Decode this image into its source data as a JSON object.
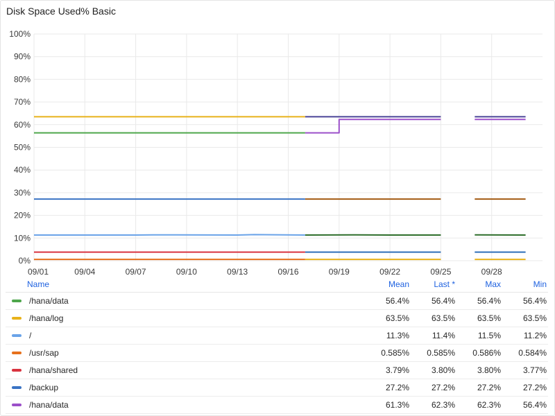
{
  "panel": {
    "title": "Disk Space Used% Basic"
  },
  "legend": {
    "headers": {
      "name": "Name",
      "mean": "Mean",
      "last": "Last *",
      "max": "Max",
      "min": "Min"
    },
    "rows": [
      {
        "name": "/hana/data",
        "color": "#4ea64b",
        "mean": "56.4%",
        "last": "56.4%",
        "max": "56.4%",
        "min": "56.4%"
      },
      {
        "name": "/hana/log",
        "color": "#e8b21a",
        "mean": "63.5%",
        "last": "63.5%",
        "max": "63.5%",
        "min": "63.5%"
      },
      {
        "name": "/",
        "color": "#6aa3e8",
        "mean": "11.3%",
        "last": "11.4%",
        "max": "11.5%",
        "min": "11.2%"
      },
      {
        "name": "/usr/sap",
        "color": "#e6701c",
        "mean": "0.585%",
        "last": "0.585%",
        "max": "0.586%",
        "min": "0.584%"
      },
      {
        "name": "/hana/shared",
        "color": "#d9333f",
        "mean": "3.79%",
        "last": "3.80%",
        "max": "3.80%",
        "min": "3.77%"
      },
      {
        "name": "/backup",
        "color": "#3a73c4",
        "mean": "27.2%",
        "last": "27.2%",
        "max": "27.2%",
        "min": "27.2%"
      },
      {
        "name": "/hana/data",
        "color": "#9b4fc9",
        "mean": "61.3%",
        "last": "62.3%",
        "max": "62.3%",
        "min": "56.4%"
      }
    ]
  },
  "chart_data": {
    "type": "line",
    "title": "Disk Space Used% Basic",
    "ylim": [
      0,
      100
    ],
    "y_tick_labels": [
      "0%",
      "10%",
      "20%",
      "30%",
      "40%",
      "50%",
      "60%",
      "70%",
      "80%",
      "90%",
      "100%"
    ],
    "y_ticks": [
      0,
      10,
      20,
      30,
      40,
      50,
      60,
      70,
      80,
      90,
      100
    ],
    "x_tick_labels": [
      "09/01",
      "09/04",
      "09/07",
      "09/10",
      "09/13",
      "09/16",
      "09/19",
      "09/22",
      "09/25",
      "09/28"
    ],
    "x_ticks": [
      "2024-09-01",
      "2024-09-04",
      "2024-09-07",
      "2024-09-10",
      "2024-09-13",
      "2024-09-16",
      "2024-09-19",
      "2024-09-22",
      "2024-09-25",
      "2024-09-28"
    ],
    "xlim": [
      "2024-09-01",
      "2024-09-30"
    ],
    "grid": true,
    "legend_position": "bottom",
    "series": [
      {
        "name": "/hana/data",
        "color": "#4ea64b",
        "points": [
          [
            "2024-09-01",
            56.4
          ],
          [
            "2024-09-17",
            56.4
          ]
        ]
      },
      {
        "name": "/hana/log",
        "color": "#e8b21a",
        "points": [
          [
            "2024-09-01",
            63.5
          ],
          [
            "2024-09-17",
            63.5
          ]
        ]
      },
      {
        "name": "/",
        "color": "#6aa3e8",
        "points": [
          [
            "2024-09-01",
            11.3
          ],
          [
            "2024-09-07",
            11.3
          ],
          [
            "2024-09-08",
            11.4
          ],
          [
            "2024-09-13",
            11.3
          ],
          [
            "2024-09-14",
            11.5
          ],
          [
            "2024-09-17",
            11.3
          ]
        ]
      },
      {
        "name": "/usr/sap",
        "color": "#e6701c",
        "points": [
          [
            "2024-09-01",
            0.585
          ],
          [
            "2024-09-17",
            0.585
          ]
        ]
      },
      {
        "name": "/hana/shared",
        "color": "#d9333f",
        "points": [
          [
            "2024-09-01",
            3.79
          ],
          [
            "2024-09-17",
            3.79
          ]
        ]
      },
      {
        "name": "/backup",
        "color": "#3a73c4",
        "points": [
          [
            "2024-09-01",
            27.2
          ],
          [
            "2024-09-17",
            27.2
          ]
        ]
      },
      {
        "name": "/hana/data",
        "color": "#9b4fc9",
        "points": [
          [
            "2024-09-17",
            56.4
          ],
          [
            "2024-09-18",
            56.4
          ],
          [
            "2024-09-19",
            56.4
          ],
          [
            "2024-09-19",
            62.3
          ],
          [
            "2024-09-25",
            62.3
          ],
          [
            "2024-09-27",
            62.3
          ],
          [
            "2024-09-30",
            62.3
          ]
        ]
      },
      {
        "name": "",
        "color": "#4a4497",
        "points": [
          [
            "2024-09-17",
            63.5
          ],
          [
            "2024-09-25",
            63.5
          ],
          [
            "2024-09-27",
            63.5
          ],
          [
            "2024-09-30",
            63.5
          ]
        ]
      },
      {
        "name": "",
        "color": "#a35a12",
        "points": [
          [
            "2024-09-17",
            27.2
          ],
          [
            "2024-09-25",
            27.2
          ],
          [
            "2024-09-27",
            27.2
          ],
          [
            "2024-09-30",
            27.2
          ]
        ]
      },
      {
        "name": "",
        "color": "#2e6e2b",
        "points": [
          [
            "2024-09-17",
            11.3
          ],
          [
            "2024-09-20",
            11.4
          ],
          [
            "2024-09-22",
            11.3
          ],
          [
            "2024-09-25",
            11.3
          ],
          [
            "2024-09-27",
            11.4
          ],
          [
            "2024-09-30",
            11.3
          ]
        ]
      },
      {
        "name": "",
        "color": "#2f6fb8",
        "points": [
          [
            "2024-09-17",
            3.79
          ],
          [
            "2024-09-25",
            3.79
          ],
          [
            "2024-09-27",
            3.8
          ],
          [
            "2024-09-30",
            3.79
          ]
        ]
      },
      {
        "name": "",
        "color": "#e8b21a",
        "points": [
          [
            "2024-09-17",
            0.585
          ],
          [
            "2024-09-25",
            0.585
          ],
          [
            "2024-09-27",
            0.585
          ],
          [
            "2024-09-30",
            0.585
          ]
        ]
      }
    ],
    "gaps": [
      [
        "2024-09-25",
        "2024-09-27"
      ]
    ]
  }
}
